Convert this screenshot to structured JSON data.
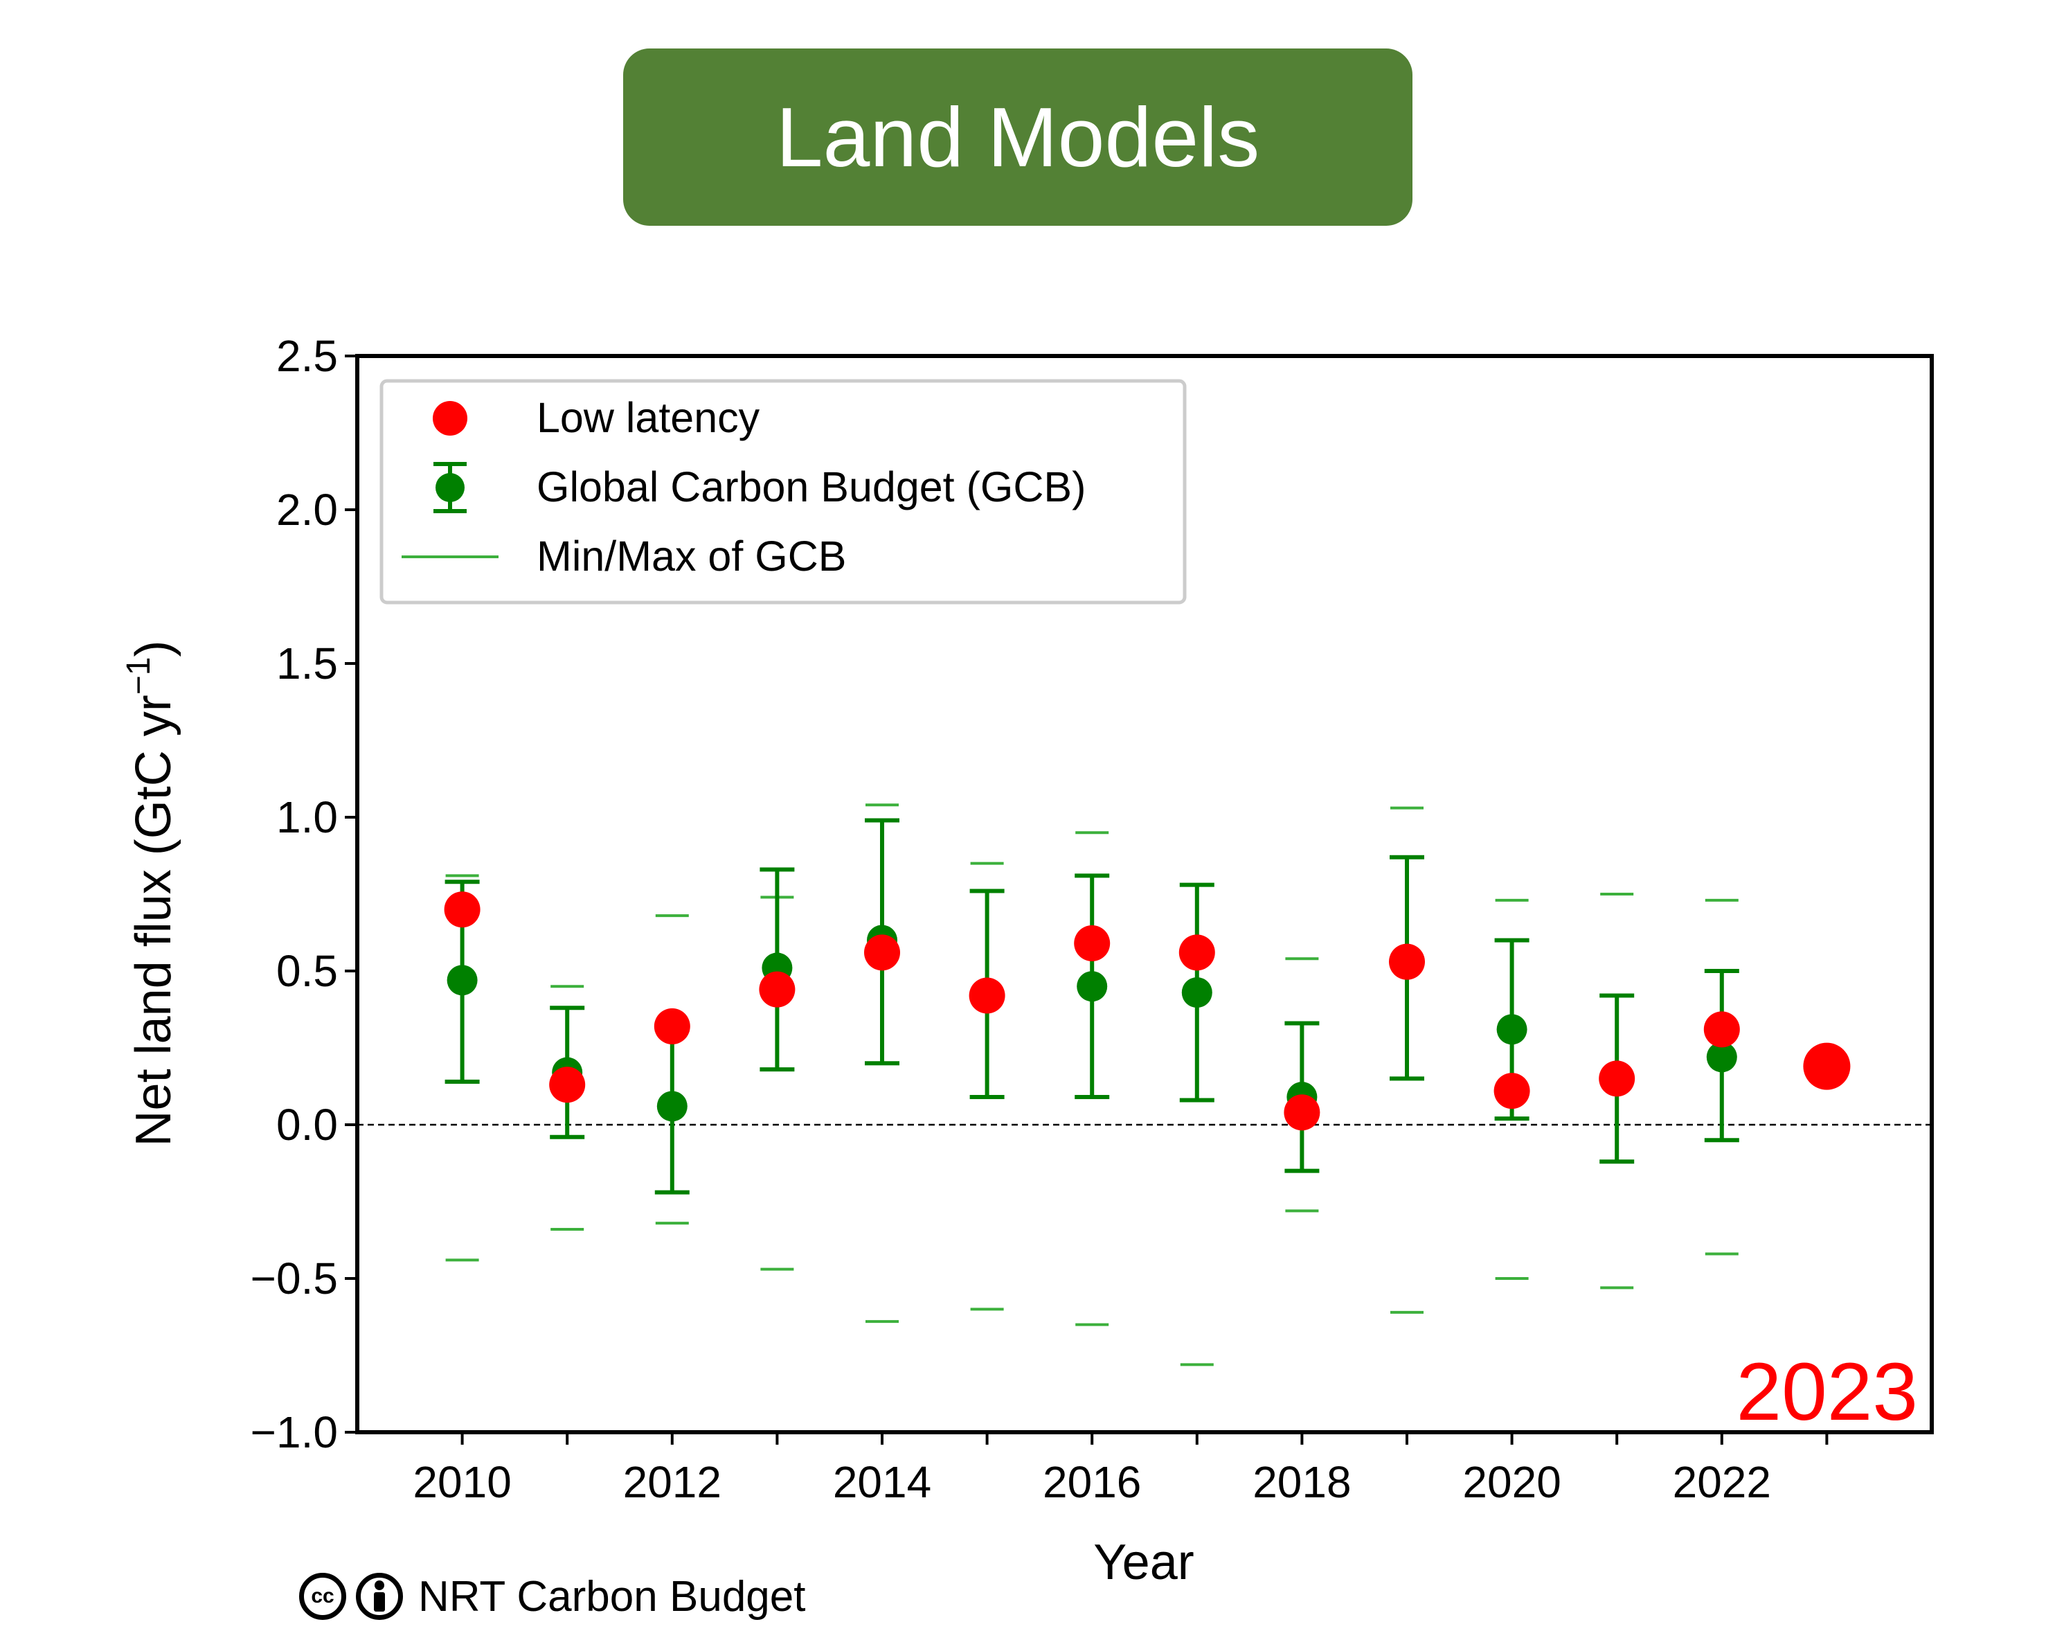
{
  "title": "Land Models",
  "credit": {
    "cc_icon": "creative-commons-icon",
    "by_icon": "attribution-person-icon",
    "text": "NRT Carbon Budget"
  },
  "chart_data": {
    "type": "scatter",
    "xlabel": "Year",
    "ylabel": "Net land flux (GtC yr",
    "ylabel_sup": "−1",
    "ylabel_close": ")",
    "xlim": [
      2009,
      2024
    ],
    "ylim": [
      -1.0,
      2.5
    ],
    "yticks": [
      2.5,
      2.0,
      1.5,
      1.0,
      0.5,
      0.0,
      -0.5,
      -1.0
    ],
    "ytick_labels": [
      "2.5",
      "2.0",
      "1.5",
      "1.0",
      "0.5",
      "0.0",
      "−0.5",
      "−1.0"
    ],
    "xticks_major": [
      2010,
      2012,
      2014,
      2016,
      2018,
      2020,
      2022
    ],
    "xtick_labels": [
      "2010",
      "2012",
      "2014",
      "2016",
      "2018",
      "2020",
      "2022"
    ],
    "xticks_minor": [
      2011,
      2013,
      2015,
      2017,
      2019,
      2021,
      2023
    ],
    "zero_line": 0.0,
    "annotation": "2023",
    "legend": {
      "position": "upper-left",
      "entries": [
        "Low latency",
        "Global Carbon Budget (GCB)",
        "Min/Max of GCB"
      ]
    },
    "colors": {
      "low_latency": "#ff0000",
      "gcb": "#008000",
      "minmax": "#3cb03c",
      "annotation": "#ff0000"
    },
    "series": [
      {
        "name": "Low latency",
        "x": [
          2010,
          2011,
          2012,
          2013,
          2014,
          2015,
          2016,
          2017,
          2018,
          2019,
          2020,
          2021,
          2022
        ],
        "values": [
          0.7,
          0.13,
          0.32,
          0.44,
          0.56,
          0.42,
          0.59,
          0.56,
          0.04,
          0.53,
          0.11,
          0.15,
          0.31
        ]
      },
      {
        "name": "Global Carbon Budget (GCB)",
        "x": [
          2010,
          2011,
          2012,
          2013,
          2014,
          2015,
          2016,
          2017,
          2018,
          2019,
          2020,
          2021,
          2022
        ],
        "values": [
          0.47,
          0.17,
          0.06,
          0.51,
          0.6,
          null,
          0.45,
          0.43,
          0.09,
          null,
          0.31,
          null,
          0.22
        ],
        "err_low": [
          0.14,
          -0.04,
          -0.22,
          0.18,
          0.2,
          0.09,
          0.09,
          0.08,
          -0.15,
          0.15,
          0.02,
          -0.12,
          -0.05
        ],
        "err_high": [
          0.79,
          0.38,
          0.31,
          0.83,
          0.99,
          0.76,
          0.81,
          0.78,
          0.33,
          0.87,
          0.6,
          0.42,
          0.5
        ]
      },
      {
        "name": "Min/Max of GCB",
        "x": [
          2010,
          2011,
          2012,
          2013,
          2014,
          2015,
          2016,
          2017,
          2018,
          2019,
          2020,
          2021,
          2022
        ],
        "max": [
          0.81,
          0.45,
          0.68,
          0.74,
          1.04,
          0.85,
          0.95,
          null,
          0.54,
          1.03,
          0.73,
          0.75,
          0.73
        ],
        "min": [
          -0.44,
          -0.34,
          -0.32,
          -0.47,
          -0.64,
          -0.6,
          -0.65,
          -0.78,
          -0.28,
          -0.61,
          -0.5,
          -0.53,
          -0.42
        ]
      },
      {
        "name": "Low latency 2023",
        "x": [
          2023
        ],
        "values": [
          0.19
        ]
      }
    ]
  }
}
